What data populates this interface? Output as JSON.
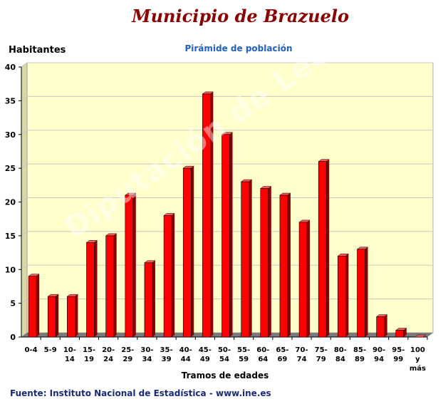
{
  "page": {
    "title": "Municipio de Brazuelo",
    "source": "Fuente: Instituto Nacional de Estadística - www.ine.es",
    "watermark": "Diputación de León"
  },
  "chart_data": {
    "type": "bar",
    "title": "Pirámide de población",
    "ylabel": "Habitantes",
    "xlabel": "Tramos de edades",
    "ylim": [
      0,
      40
    ],
    "yticks": [
      0,
      5,
      10,
      15,
      20,
      25,
      30,
      35,
      40
    ],
    "grid": true,
    "categories": [
      [
        "0-4"
      ],
      [
        "5-9"
      ],
      [
        "10-",
        "14"
      ],
      [
        "15-",
        "19"
      ],
      [
        "20-",
        "24"
      ],
      [
        "25-",
        "29"
      ],
      [
        "30-",
        "34"
      ],
      [
        "35-",
        "39"
      ],
      [
        "40-",
        "44"
      ],
      [
        "45-",
        "49"
      ],
      [
        "50-",
        "54"
      ],
      [
        "55-",
        "59"
      ],
      [
        "60-",
        "64"
      ],
      [
        "65-",
        "69"
      ],
      [
        "70-",
        "74"
      ],
      [
        "75-",
        "79"
      ],
      [
        "80-",
        "84"
      ],
      [
        "85-",
        "89"
      ],
      [
        "90-",
        "94"
      ],
      [
        "95-",
        "99"
      ],
      [
        "100",
        "y",
        "más"
      ]
    ],
    "values": [
      9,
      6,
      6,
      14,
      15,
      21,
      11,
      18,
      25,
      36,
      30,
      23,
      22,
      21,
      17,
      26,
      12,
      13,
      3,
      1,
      0
    ],
    "colors": {
      "bar": "#ff0000",
      "bar_side": "#8a0000",
      "bar_top": "#ff5a5a",
      "plot_bg": "#ffffcc",
      "floor": "#7a7a7a",
      "grid": "#c8c8c8"
    }
  }
}
